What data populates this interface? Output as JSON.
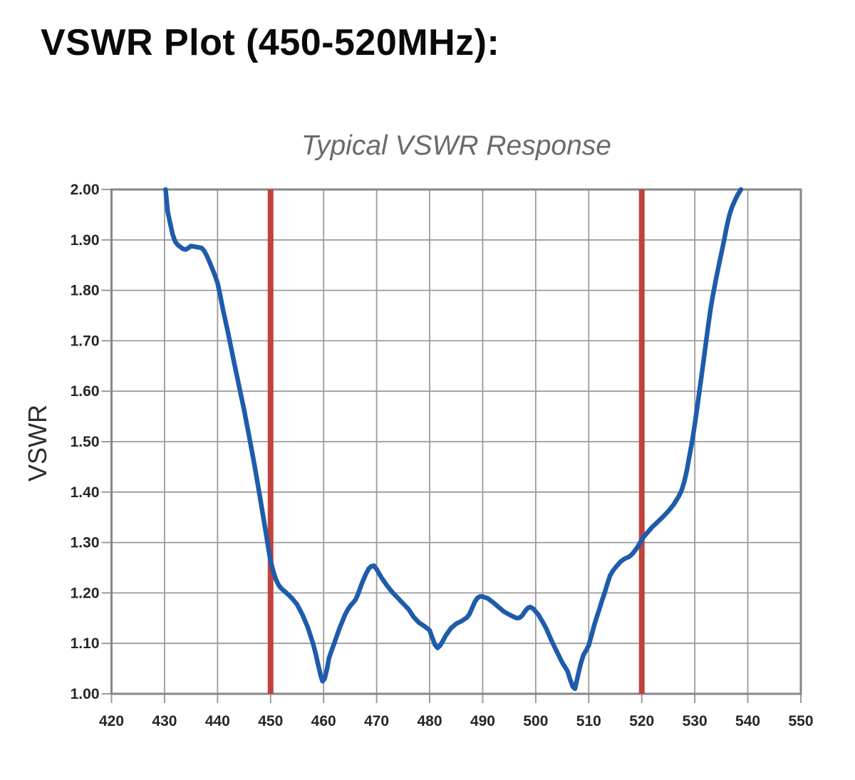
{
  "page": {
    "title": "VSWR Plot (450-520MHz):"
  },
  "colors": {
    "background": "#ffffff",
    "title_text": "#0a0a0a",
    "chart_title_text": "#6a6a6e",
    "grid": "#9b9b9b",
    "border": "#87878a",
    "tick_label": "#25252b",
    "curve": "#1e5cab",
    "band_edge": "#c1423c"
  },
  "chart_data": {
    "type": "line",
    "title": "Typical VSWR Response",
    "xlabel": "",
    "ylabel": "VSWR",
    "xlim": [
      420,
      550
    ],
    "ylim": [
      1.0,
      2.0
    ],
    "grid": true,
    "legend": "none",
    "x_tick_values": [
      420,
      430,
      440,
      450,
      460,
      470,
      480,
      490,
      500,
      510,
      520,
      530,
      540,
      550
    ],
    "x_tick_labels": [
      "420",
      "430",
      "440",
      "450",
      "460",
      "470",
      "480",
      "490",
      "500",
      "510",
      "520",
      "530",
      "540",
      "550"
    ],
    "y_tick_values": [
      1.0,
      1.1,
      1.2,
      1.3,
      1.4,
      1.5,
      1.6,
      1.7,
      1.8,
      1.9,
      2.0
    ],
    "y_tick_labels": [
      "1.00",
      "1.10",
      "1.20",
      "1.30",
      "1.40",
      "1.50",
      "1.60",
      "1.70",
      "1.80",
      "1.90",
      "2.00"
    ],
    "band_edges": {
      "x_values": [
        450,
        520
      ],
      "color": "#c1423c"
    },
    "series": [
      {
        "name": "Typical VSWR",
        "color": "#1e5cab",
        "points": [
          [
            430.2,
            2.0
          ],
          [
            430.6,
            1.956
          ],
          [
            431,
            1.936
          ],
          [
            431.5,
            1.912
          ],
          [
            432,
            1.897
          ],
          [
            432.5,
            1.89
          ],
          [
            433,
            1.886
          ],
          [
            433.5,
            1.882
          ],
          [
            434,
            1.881
          ],
          [
            434.5,
            1.884
          ],
          [
            435,
            1.888
          ],
          [
            435.5,
            1.887
          ],
          [
            436,
            1.886
          ],
          [
            436.5,
            1.885
          ],
          [
            437,
            1.884
          ],
          [
            437.5,
            1.878
          ],
          [
            438,
            1.868
          ],
          [
            438.5,
            1.856
          ],
          [
            439,
            1.843
          ],
          [
            439.5,
            1.83
          ],
          [
            440,
            1.815
          ],
          [
            440.5,
            1.79
          ],
          [
            441,
            1.763
          ],
          [
            442,
            1.715
          ],
          [
            443,
            1.663
          ],
          [
            444,
            1.613
          ],
          [
            445,
            1.563
          ],
          [
            446,
            1.508
          ],
          [
            447,
            1.452
          ],
          [
            448,
            1.39
          ],
          [
            449,
            1.327
          ],
          [
            449.5,
            1.295
          ],
          [
            450,
            1.263
          ],
          [
            450.5,
            1.243
          ],
          [
            451,
            1.227
          ],
          [
            451.5,
            1.216
          ],
          [
            452,
            1.209
          ],
          [
            453,
            1.2
          ],
          [
            454,
            1.19
          ],
          [
            455,
            1.177
          ],
          [
            456,
            1.157
          ],
          [
            457,
            1.132
          ],
          [
            458,
            1.1
          ],
          [
            458.5,
            1.08
          ],
          [
            459,
            1.056
          ],
          [
            459.5,
            1.034
          ],
          [
            459.8,
            1.025
          ],
          [
            460.2,
            1.03
          ],
          [
            460.7,
            1.052
          ],
          [
            461,
            1.07
          ],
          [
            461.5,
            1.086
          ],
          [
            462,
            1.1
          ],
          [
            463,
            1.13
          ],
          [
            464,
            1.156
          ],
          [
            464.5,
            1.166
          ],
          [
            465,
            1.174
          ],
          [
            465.5,
            1.18
          ],
          [
            466,
            1.186
          ],
          [
            466.5,
            1.198
          ],
          [
            467,
            1.213
          ],
          [
            467.5,
            1.226
          ],
          [
            468,
            1.238
          ],
          [
            468.5,
            1.248
          ],
          [
            469,
            1.253
          ],
          [
            469.5,
            1.254
          ],
          [
            470,
            1.247
          ],
          [
            470.5,
            1.238
          ],
          [
            471,
            1.229
          ],
          [
            472,
            1.214
          ],
          [
            473,
            1.201
          ],
          [
            474,
            1.19
          ],
          [
            475,
            1.179
          ],
          [
            476,
            1.168
          ],
          [
            477,
            1.152
          ],
          [
            478,
            1.141
          ],
          [
            479,
            1.134
          ],
          [
            480,
            1.126
          ],
          [
            480.5,
            1.111
          ],
          [
            481,
            1.097
          ],
          [
            481.5,
            1.091
          ],
          [
            482,
            1.096
          ],
          [
            482.5,
            1.105
          ],
          [
            483,
            1.115
          ],
          [
            484,
            1.13
          ],
          [
            485,
            1.139
          ],
          [
            486,
            1.144
          ],
          [
            487,
            1.151
          ],
          [
            487.5,
            1.158
          ],
          [
            488,
            1.17
          ],
          [
            488.5,
            1.182
          ],
          [
            489,
            1.19
          ],
          [
            489.5,
            1.193
          ],
          [
            490,
            1.193
          ],
          [
            490.5,
            1.191
          ],
          [
            491,
            1.189
          ],
          [
            492,
            1.181
          ],
          [
            493,
            1.172
          ],
          [
            494,
            1.163
          ],
          [
            495,
            1.157
          ],
          [
            496,
            1.152
          ],
          [
            496.5,
            1.15
          ],
          [
            497,
            1.151
          ],
          [
            497.5,
            1.156
          ],
          [
            498,
            1.164
          ],
          [
            498.5,
            1.17
          ],
          [
            499,
            1.172
          ],
          [
            499.5,
            1.169
          ],
          [
            500,
            1.163
          ],
          [
            500.5,
            1.157
          ],
          [
            501,
            1.148
          ],
          [
            501.5,
            1.139
          ],
          [
            502,
            1.129
          ],
          [
            503,
            1.105
          ],
          [
            504,
            1.083
          ],
          [
            505,
            1.062
          ],
          [
            506,
            1.045
          ],
          [
            506.5,
            1.028
          ],
          [
            507,
            1.014
          ],
          [
            507.4,
            1.01
          ],
          [
            508,
            1.038
          ],
          [
            508.5,
            1.06
          ],
          [
            509,
            1.077
          ],
          [
            509.5,
            1.086
          ],
          [
            510,
            1.096
          ],
          [
            510.5,
            1.115
          ],
          [
            511,
            1.135
          ],
          [
            511.5,
            1.152
          ],
          [
            512,
            1.168
          ],
          [
            512.5,
            1.185
          ],
          [
            513,
            1.2
          ],
          [
            513.5,
            1.218
          ],
          [
            514,
            1.234
          ],
          [
            514.5,
            1.243
          ],
          [
            515,
            1.25
          ],
          [
            515.5,
            1.256
          ],
          [
            516,
            1.262
          ],
          [
            516.5,
            1.266
          ],
          [
            517,
            1.269
          ],
          [
            517.5,
            1.271
          ],
          [
            518,
            1.275
          ],
          [
            518.5,
            1.281
          ],
          [
            519,
            1.288
          ],
          [
            519.5,
            1.296
          ],
          [
            520,
            1.306
          ],
          [
            520.5,
            1.313
          ],
          [
            521,
            1.319
          ],
          [
            522,
            1.331
          ],
          [
            523,
            1.341
          ],
          [
            524,
            1.351
          ],
          [
            525,
            1.362
          ],
          [
            526,
            1.375
          ],
          [
            527,
            1.392
          ],
          [
            527.5,
            1.403
          ],
          [
            528,
            1.42
          ],
          [
            528.5,
            1.443
          ],
          [
            529,
            1.472
          ],
          [
            529.5,
            1.5
          ],
          [
            530,
            1.535
          ],
          [
            530.5,
            1.572
          ],
          [
            531,
            1.61
          ],
          [
            531.5,
            1.648
          ],
          [
            532,
            1.688
          ],
          [
            532.5,
            1.728
          ],
          [
            533,
            1.765
          ],
          [
            533.5,
            1.795
          ],
          [
            534,
            1.822
          ],
          [
            534.5,
            1.848
          ],
          [
            535,
            1.873
          ],
          [
            535.5,
            1.898
          ],
          [
            536,
            1.925
          ],
          [
            536.5,
            1.948
          ],
          [
            537,
            1.965
          ],
          [
            537.5,
            1.977
          ],
          [
            538,
            1.988
          ],
          [
            538.7,
            2.0
          ]
        ]
      }
    ]
  }
}
